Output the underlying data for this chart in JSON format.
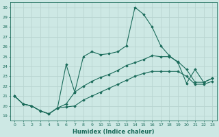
{
  "xlabel": "Humidex (Indice chaleur)",
  "ylabel": "",
  "background_color": "#cde8e4",
  "grid_color": "#b8d4d0",
  "line_color": "#1a6b5a",
  "xlim": [
    -0.5,
    23.5
  ],
  "ylim": [
    18.5,
    30.5
  ],
  "yticks": [
    19,
    20,
    21,
    22,
    23,
    24,
    25,
    26,
    27,
    28,
    29,
    30
  ],
  "xticks": [
    0,
    1,
    2,
    3,
    4,
    5,
    6,
    7,
    8,
    9,
    10,
    11,
    12,
    13,
    14,
    15,
    16,
    17,
    18,
    19,
    20,
    21,
    22,
    23
  ],
  "series": [
    {
      "x": [
        0,
        1,
        2,
        3,
        4,
        5,
        6,
        7,
        8,
        9,
        10,
        11,
        12,
        13,
        14,
        15,
        16,
        17,
        18,
        19,
        20,
        21,
        22,
        23
      ],
      "y": [
        21.0,
        20.2,
        20.0,
        19.5,
        19.2,
        19.8,
        24.2,
        21.4,
        25.0,
        25.5,
        25.2,
        25.3,
        25.5,
        26.1,
        30.0,
        29.3,
        28.0,
        26.1,
        25.1,
        24.4,
        22.3,
        23.7,
        22.4,
        22.8
      ]
    },
    {
      "x": [
        0,
        1,
        2,
        3,
        4,
        5,
        6,
        7,
        8,
        9,
        10,
        11,
        12,
        13,
        14,
        15,
        16,
        17,
        18,
        19,
        20,
        21,
        22,
        23
      ],
      "y": [
        21.0,
        20.2,
        20.0,
        19.5,
        19.2,
        19.8,
        20.2,
        21.4,
        22.0,
        22.5,
        22.9,
        23.2,
        23.6,
        24.1,
        24.4,
        24.7,
        25.1,
        25.0,
        25.0,
        24.5,
        23.7,
        22.4,
        22.4,
        22.8
      ]
    },
    {
      "x": [
        0,
        1,
        2,
        3,
        4,
        5,
        6,
        7,
        8,
        9,
        10,
        11,
        12,
        13,
        14,
        15,
        16,
        17,
        18,
        19,
        20,
        21,
        22,
        23
      ],
      "y": [
        21.0,
        20.2,
        20.0,
        19.5,
        19.2,
        19.8,
        19.9,
        20.0,
        20.6,
        21.0,
        21.4,
        21.8,
        22.2,
        22.6,
        23.0,
        23.3,
        23.5,
        23.5,
        23.5,
        23.5,
        23.0,
        22.2,
        22.2,
        22.5
      ]
    }
  ]
}
